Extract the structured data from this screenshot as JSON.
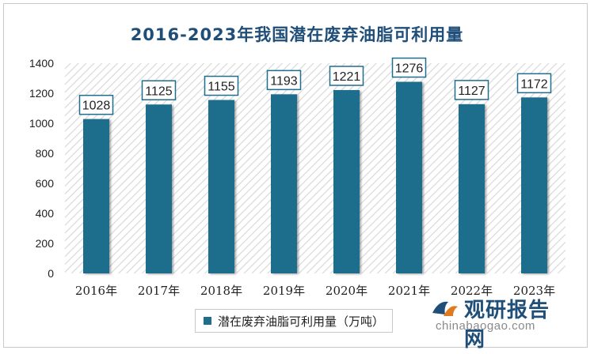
{
  "title": "2016-2023年我国潜在废弃油脂可利用量",
  "legend_label": "潜在废弃油脂可利用量（万吨）",
  "watermark": {
    "cn": "观研报告网",
    "en": "chinabaogao.com"
  },
  "colors": {
    "bar": "#1f6e8c",
    "title": "#1f4e79",
    "label_border": "#1f6e8c"
  },
  "chart_data": {
    "type": "bar",
    "title": "2016-2023年我国潜在废弃油脂可利用量",
    "categories": [
      "2016年",
      "2017年",
      "2018年",
      "2019年",
      "2020年",
      "2021年",
      "2022年",
      "2023年"
    ],
    "series": [
      {
        "name": "潜在废弃油脂可利用量（万吨）",
        "values": [
          1028,
          1125,
          1155,
          1193,
          1221,
          1276,
          1127,
          1172
        ]
      }
    ],
    "yticks": [
      0,
      200,
      400,
      600,
      800,
      1000,
      1200,
      1400
    ],
    "ylim": [
      0,
      1400
    ],
    "xlabel": "",
    "ylabel": "",
    "grid": false,
    "legend": "bottom"
  }
}
